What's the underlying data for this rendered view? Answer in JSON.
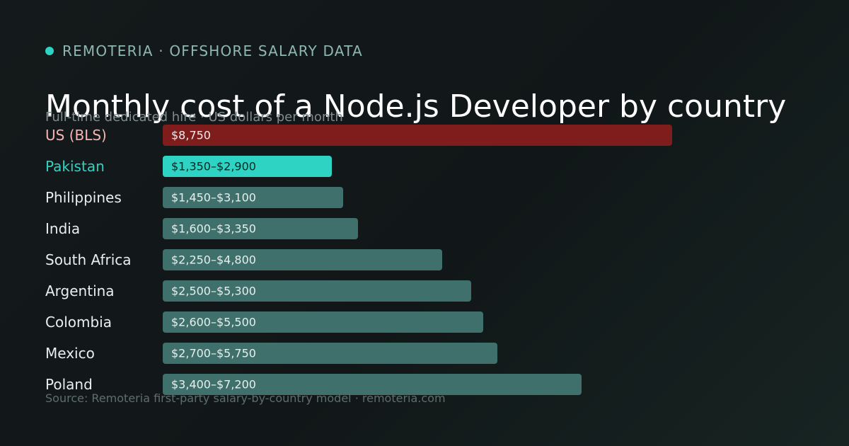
{
  "brand": {
    "label": "REMOTERIA · OFFSHORE SALARY DATA",
    "dot_color": "#2ed3c3"
  },
  "header": {
    "title": "Monthly cost of a Node.js Developer by country",
    "subtitle": "Full-time dedicated hire · US dollars per month"
  },
  "footer": {
    "source": "Source: Remoteria first-party salary-by-country model · remoteria.com"
  },
  "colors": {
    "us_bar": "#7f1d1d",
    "us_label": "#f6b4b4",
    "highlight_bar": "#2ed3c3",
    "highlight_label": "#2ed3c3",
    "default_bar": "#3f706b",
    "default_label": "#e9eeed",
    "bar_text_light": "#e9eeed",
    "bar_text_dark": "#0e2220"
  },
  "chart_data": {
    "type": "bar",
    "orientation": "horizontal",
    "title": "Monthly cost of a Node.js Developer by country",
    "subtitle": "Full-time dedicated hire · US dollars per month",
    "xlim": [
      0,
      8750
    ],
    "grid": false,
    "rows": [
      {
        "category": "US (BLS)",
        "value": 8750,
        "label": "$8,750",
        "style": "us"
      },
      {
        "category": "Pakistan",
        "low": 1350,
        "high": 2900,
        "value": 2900,
        "label": "$1,350–$2,900",
        "style": "highlight"
      },
      {
        "category": "Philippines",
        "low": 1450,
        "high": 3100,
        "value": 3100,
        "label": "$1,450–$3,100",
        "style": "default"
      },
      {
        "category": "India",
        "low": 1600,
        "high": 3350,
        "value": 3350,
        "label": "$1,600–$3,350",
        "style": "default"
      },
      {
        "category": "South Africa",
        "low": 2250,
        "high": 4800,
        "value": 4800,
        "label": "$2,250–$4,800",
        "style": "default"
      },
      {
        "category": "Argentina",
        "low": 2500,
        "high": 5300,
        "value": 5300,
        "label": "$2,500–$5,300",
        "style": "default"
      },
      {
        "category": "Colombia",
        "low": 2600,
        "high": 5500,
        "value": 5500,
        "label": "$2,600–$5,500",
        "style": "default"
      },
      {
        "category": "Mexico",
        "low": 2700,
        "high": 5750,
        "value": 5750,
        "label": "$2,700–$5,750",
        "style": "default"
      },
      {
        "category": "Poland",
        "low": 3400,
        "high": 7200,
        "value": 7200,
        "label": "$3,400–$7,200",
        "style": "default"
      }
    ]
  }
}
